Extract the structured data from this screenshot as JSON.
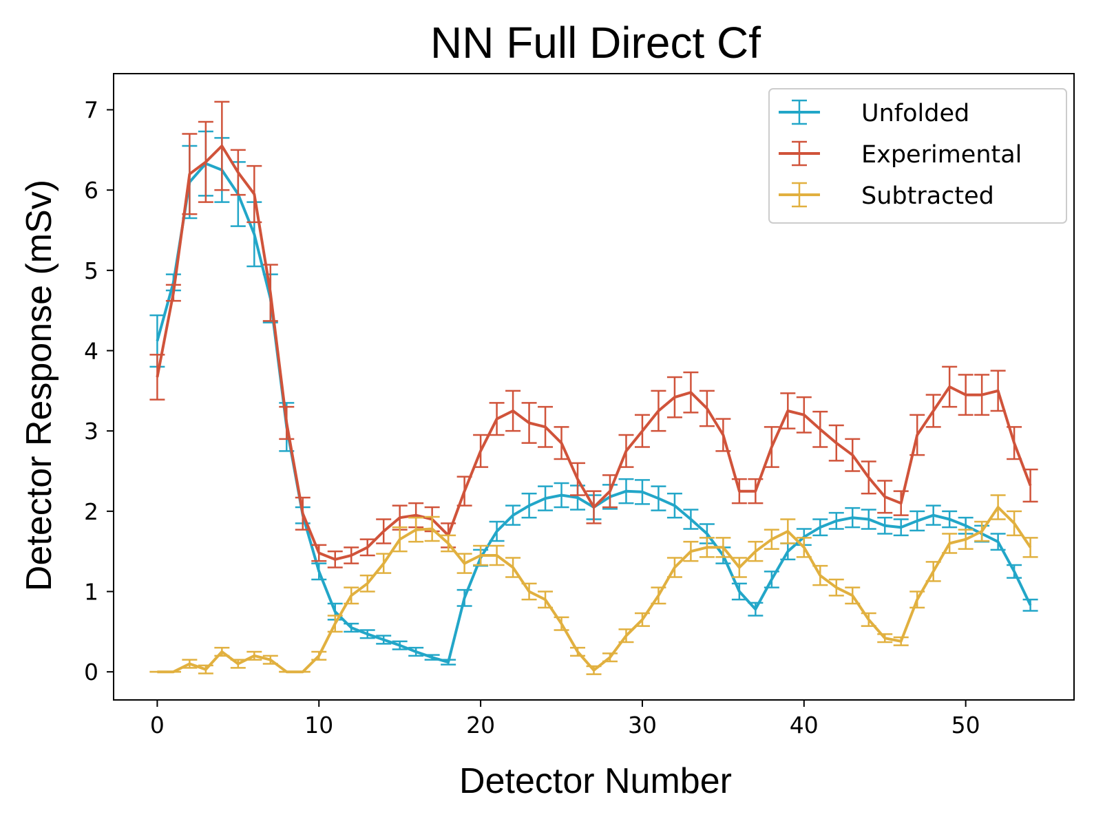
{
  "chart_data": {
    "type": "line",
    "title": "NN Full Direct Cf",
    "xlabel": "Detector Number",
    "ylabel": "Detector Response (mSv)",
    "xlim": [
      -2.7,
      56.7
    ],
    "ylim": [
      -0.35,
      7.45
    ],
    "xticks": [
      0,
      10,
      20,
      30,
      40,
      50
    ],
    "yticks": [
      0,
      1,
      2,
      3,
      4,
      5,
      6,
      7
    ],
    "error_bars": true,
    "grid": false,
    "legend_position": "top-right",
    "x": [
      0,
      1,
      2,
      3,
      4,
      5,
      6,
      7,
      8,
      9,
      10,
      11,
      12,
      13,
      14,
      15,
      16,
      17,
      18,
      19,
      20,
      21,
      22,
      23,
      24,
      25,
      26,
      27,
      28,
      29,
      30,
      31,
      32,
      33,
      34,
      35,
      36,
      37,
      38,
      39,
      40,
      41,
      42,
      43,
      44,
      45,
      46,
      47,
      48,
      49,
      50,
      51,
      52,
      53,
      54
    ],
    "series": [
      {
        "name": "Unfolded",
        "color": "#22a6c8",
        "values": [
          4.12,
          4.85,
          6.1,
          6.33,
          6.25,
          5.95,
          5.45,
          4.65,
          3.05,
          1.95,
          1.25,
          0.75,
          0.55,
          0.47,
          0.4,
          0.33,
          0.25,
          0.18,
          0.12,
          0.92,
          1.42,
          1.75,
          1.95,
          2.07,
          2.16,
          2.2,
          2.17,
          2.05,
          2.18,
          2.25,
          2.24,
          2.16,
          2.07,
          1.9,
          1.72,
          1.45,
          1.0,
          0.78,
          1.15,
          1.5,
          1.68,
          1.8,
          1.88,
          1.92,
          1.9,
          1.82,
          1.8,
          1.88,
          1.95,
          1.9,
          1.82,
          1.72,
          1.62,
          1.25,
          0.83
        ],
        "errors": [
          0.32,
          0.1,
          0.45,
          0.4,
          0.4,
          0.4,
          0.4,
          0.3,
          0.3,
          0.1,
          0.1,
          0.1,
          0.05,
          0.05,
          0.05,
          0.05,
          0.05,
          0.03,
          0.03,
          0.1,
          0.1,
          0.12,
          0.12,
          0.15,
          0.15,
          0.15,
          0.15,
          0.15,
          0.15,
          0.15,
          0.15,
          0.15,
          0.15,
          0.12,
          0.12,
          0.1,
          0.1,
          0.08,
          0.1,
          0.1,
          0.1,
          0.1,
          0.1,
          0.12,
          0.12,
          0.1,
          0.1,
          0.12,
          0.12,
          0.1,
          0.1,
          0.1,
          0.1,
          0.08,
          0.07
        ]
      },
      {
        "name": "Experimental",
        "color": "#d0533a",
        "values": [
          3.67,
          4.72,
          6.2,
          6.35,
          6.55,
          6.22,
          5.95,
          4.72,
          3.1,
          1.97,
          1.48,
          1.4,
          1.45,
          1.55,
          1.75,
          1.92,
          1.95,
          1.9,
          1.7,
          2.25,
          2.75,
          3.15,
          3.25,
          3.1,
          3.05,
          2.85,
          2.4,
          2.05,
          2.25,
          2.75,
          3.0,
          3.25,
          3.42,
          3.48,
          3.28,
          2.95,
          2.25,
          2.25,
          2.8,
          3.25,
          3.2,
          3.02,
          2.85,
          2.7,
          2.42,
          2.18,
          2.1,
          2.95,
          3.25,
          3.55,
          3.45,
          3.45,
          3.5,
          2.85,
          2.32
        ],
        "errors": [
          0.28,
          0.1,
          0.5,
          0.5,
          0.55,
          0.28,
          0.35,
          0.35,
          0.2,
          0.2,
          0.1,
          0.1,
          0.1,
          0.1,
          0.15,
          0.15,
          0.15,
          0.15,
          0.15,
          0.18,
          0.2,
          0.2,
          0.25,
          0.25,
          0.25,
          0.2,
          0.2,
          0.2,
          0.2,
          0.2,
          0.2,
          0.25,
          0.25,
          0.25,
          0.22,
          0.2,
          0.15,
          0.15,
          0.25,
          0.22,
          0.22,
          0.22,
          0.22,
          0.2,
          0.2,
          0.2,
          0.15,
          0.25,
          0.2,
          0.25,
          0.25,
          0.25,
          0.25,
          0.2,
          0.2
        ]
      },
      {
        "name": "Subtracted",
        "color": "#e1b03f",
        "values": [
          0,
          0,
          0.1,
          0.03,
          0.25,
          0.1,
          0.2,
          0.15,
          0,
          0,
          0.2,
          0.6,
          0.95,
          1.1,
          1.35,
          1.65,
          1.77,
          1.78,
          1.6,
          1.35,
          1.45,
          1.45,
          1.3,
          1.0,
          0.9,
          0.6,
          0.25,
          0.02,
          0.18,
          0.45,
          0.65,
          0.95,
          1.3,
          1.5,
          1.55,
          1.55,
          1.3,
          1.5,
          1.65,
          1.75,
          1.55,
          1.2,
          1.05,
          0.95,
          0.65,
          0.42,
          0.38,
          0.9,
          1.25,
          1.6,
          1.65,
          1.75,
          2.05,
          1.85,
          1.55
        ],
        "errors": [
          0,
          0,
          0.05,
          0.05,
          0.05,
          0.05,
          0.05,
          0.05,
          0,
          0,
          0.05,
          0.1,
          0.1,
          0.1,
          0.12,
          0.15,
          0.15,
          0.15,
          0.1,
          0.12,
          0.12,
          0.12,
          0.12,
          0.1,
          0.1,
          0.08,
          0.05,
          0.05,
          0.05,
          0.08,
          0.08,
          0.1,
          0.12,
          0.12,
          0.12,
          0.12,
          0.12,
          0.12,
          0.12,
          0.15,
          0.12,
          0.12,
          0.1,
          0.1,
          0.08,
          0.05,
          0.05,
          0.1,
          0.12,
          0.12,
          0.12,
          0.12,
          0.15,
          0.15,
          0.12
        ]
      }
    ]
  }
}
